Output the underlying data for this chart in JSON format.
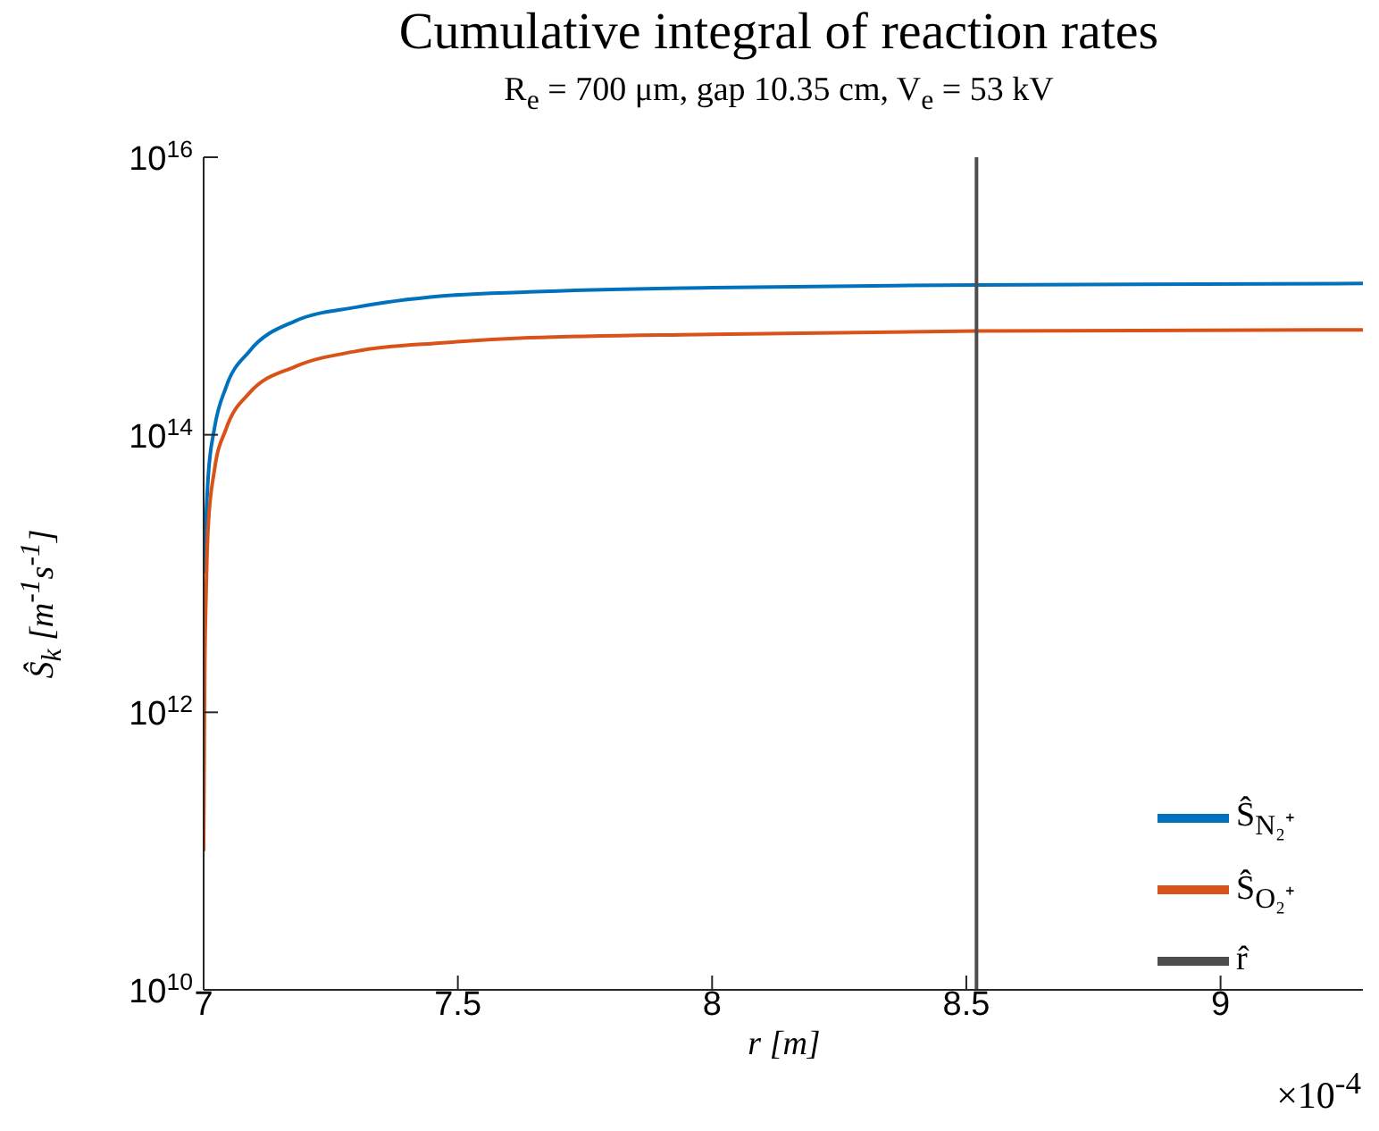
{
  "chart_data": {
    "type": "line",
    "title": "Cumulative integral of reaction rates",
    "subtitle": "R$_{e}$ = 700 μm, gap 10.35 cm, V$_{e}$ = 53 kV",
    "xlabel": "r [m]",
    "ylabel": "Ŝ$_{k}$ [m$^{-1}$s$^{-1}$]",
    "annotations": [
      "×10$^{-4}$"
    ],
    "log": "y",
    "legend": "bottom right",
    "marker": "none",
    "line_style": "solid",
    "xlim": [
      7,
      9.28
    ],
    "xticks": [
      7,
      7.5,
      8,
      8.5,
      9
    ],
    "ylim": [
      10000000000.0,
      1e+16
    ],
    "yticks": [
      {
        "value": 10000000000.0,
        "label": "10$^{10}$"
      },
      {
        "value": 1000000000000.0,
        "label": "10$^{12}$"
      },
      {
        "value": 100000000000000.0,
        "label": "10$^{14}$"
      },
      {
        "value": 1e+16,
        "label": "10$^{16}$"
      }
    ],
    "series": [
      {
        "name": "Ŝ$_{N₂⁺}$",
        "color": "#0072bd",
        "x": [
          7,
          7.009,
          7.021,
          7.044,
          7.09,
          7.18,
          7.3,
          7.47,
          7.64,
          8,
          8.52,
          9.28
        ],
        "values": [
          10000000000000.0,
          50000000000000.0,
          110000000000000.0,
          220000000000000.0,
          400000000000000.0,
          660000000000000.0,
          830000000000000.0,
          1000000000000000.0,
          1070000000000000.0,
          1150000000000000.0,
          1200000000000000.0,
          1230000000000000.0
        ]
      },
      {
        "name": "Ŝ$_{O₂⁺}$",
        "color": "#d95319",
        "x": [
          7,
          7.002,
          7.005,
          7.009,
          7.021,
          7.044,
          7.09,
          7.18,
          7.3,
          7.47,
          7.64,
          8,
          8.52,
          9.28
        ],
        "values": [
          100000000000.0,
          1700000000000.0,
          7600000000000.0,
          22000000000000.0,
          55000000000000.0,
          110000000000000.0,
          200000000000000.0,
          310000000000000.0,
          400000000000000.0,
          460000000000000.0,
          500000000000000.0,
          530000000000000.0,
          560000000000000.0,
          570000000000000.0
        ]
      },
      {
        "name": "r̂",
        "color": "#4d4d4d",
        "x": [
          8.52,
          8.52
        ],
        "values": [
          10000000000.0,
          1e+16
        ]
      }
    ]
  }
}
